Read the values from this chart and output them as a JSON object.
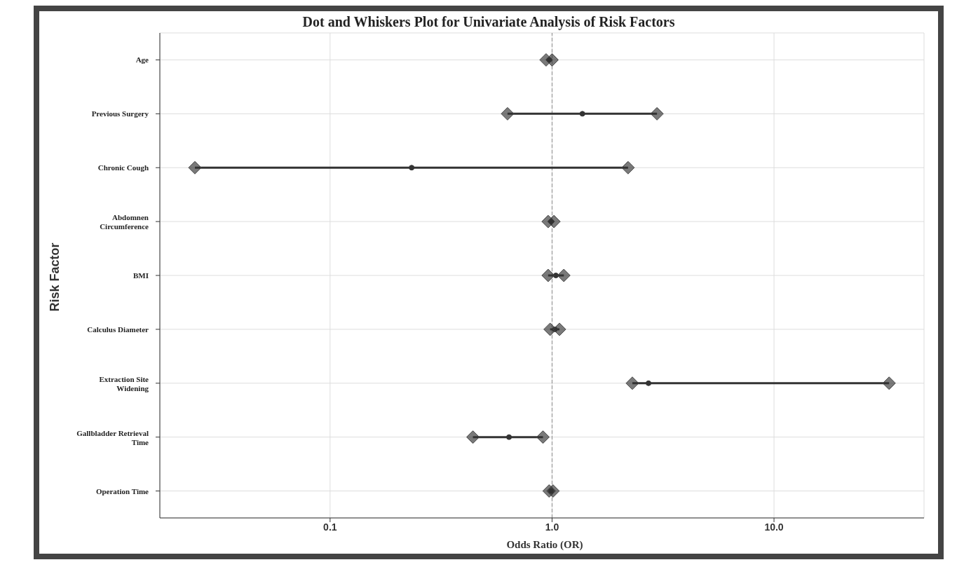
{
  "chart_data": {
    "type": "scatter",
    "orientation": "horizontal",
    "title": "Dot and Whiskers Plot for Univariate Analysis of Risk Factors",
    "xlabel": "Odds Ratio (OR)",
    "ylabel": "Risk Factor",
    "categories": [
      "Age",
      "Previous Surgery",
      "Chronic Cough",
      "Abdomnen Circumference",
      "BMI",
      "Calculus Diameter",
      "Extraction Site Widening",
      "Gallbladder Retrieval Time",
      "Operation Time"
    ],
    "series": [
      {
        "color": "#333333",
        "values": [
          0.97,
          1.37,
          0.233,
          0.99,
          1.04,
          1.03,
          2.72,
          0.64,
          0.99
        ],
        "errors": [
          [
            0.94,
            1.0
          ],
          [
            0.63,
            2.97
          ],
          [
            0.0246,
            2.2
          ],
          [
            0.96,
            1.02
          ],
          [
            0.96,
            1.13
          ],
          [
            0.98,
            1.08
          ],
          [
            2.3,
            33.0
          ],
          [
            0.44,
            0.91
          ],
          [
            0.97,
            1.01
          ]
        ]
      }
    ],
    "xlim": [
      0.0171,
      47.4
    ],
    "xticks": [
      0.1,
      {
        "value": 1,
        "label": "1.0"
      },
      {
        "value": 10,
        "label": "10.0"
      }
    ],
    "log": "x",
    "grid": true,
    "marker": "circle",
    "ref_lines": [
      {
        "axis": "x",
        "value": 1,
        "line_style": "dashed",
        "color": "#888888"
      }
    ]
  }
}
